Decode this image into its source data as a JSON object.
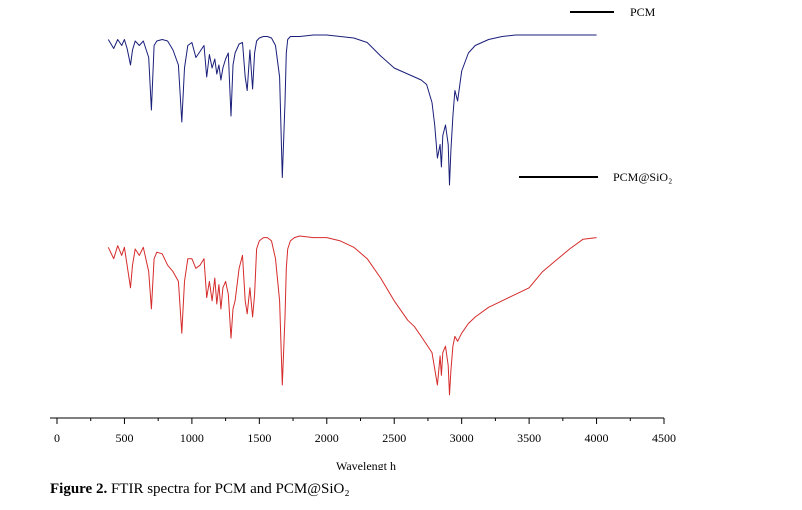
{
  "caption": {
    "label": "Figure 2.",
    "text": "FTIR spectra for PCM and PCM@SiO₂"
  },
  "chart_data": {
    "type": "line",
    "title": "",
    "xlabel": "Wavelengt h",
    "ylabel": "",
    "xlim": [
      0,
      4500
    ],
    "xticks": [
      0,
      500,
      1000,
      1500,
      2000,
      2500,
      3000,
      3500,
      4000,
      4500
    ],
    "grid": false,
    "legend": "inline-right",
    "series": [
      {
        "name": "PCM",
        "color": "#1a1f7a",
        "x": [
          380,
          420,
          450,
          480,
          500,
          520,
          545,
          560,
          580,
          610,
          640,
          680,
          700,
          720,
          740,
          780,
          820,
          860,
          900,
          925,
          945,
          970,
          1000,
          1030,
          1060,
          1090,
          1110,
          1130,
          1150,
          1170,
          1185,
          1200,
          1215,
          1230,
          1250,
          1270,
          1290,
          1305,
          1320,
          1350,
          1375,
          1395,
          1410,
          1430,
          1450,
          1465,
          1480,
          1500,
          1530,
          1560,
          1590,
          1620,
          1650,
          1670,
          1690,
          1700,
          1710,
          1730,
          1760,
          1800,
          1900,
          2000,
          2100,
          2200,
          2300,
          2400,
          2500,
          2600,
          2650,
          2700,
          2740,
          2780,
          2800,
          2820,
          2840,
          2850,
          2860,
          2880,
          2900,
          2910,
          2920,
          2935,
          2950,
          2970,
          3000,
          3050,
          3100,
          3200,
          3300,
          3400,
          3500,
          3600,
          3700,
          3800,
          3900,
          4000
        ],
        "values": [
          97,
          91,
          97,
          93,
          97,
          91,
          80,
          90,
          96,
          93,
          96,
          85,
          50,
          93,
          96,
          97,
          96,
          90,
          80,
          42,
          78,
          93,
          95,
          85,
          89,
          93,
          72,
          87,
          78,
          84,
          74,
          80,
          70,
          78,
          84,
          88,
          46,
          80,
          88,
          94,
          95,
          72,
          63,
          90,
          64,
          88,
          96,
          98,
          99,
          99,
          98,
          93,
          72,
          5,
          55,
          88,
          97,
          99,
          99,
          99,
          100,
          100,
          99,
          98,
          95,
          86,
          78,
          74,
          72,
          70,
          67,
          55,
          40,
          18,
          27,
          12,
          33,
          40,
          27,
          0,
          23,
          46,
          63,
          56,
          76,
          88,
          93,
          97,
          99,
          100,
          100,
          100,
          100,
          100,
          100,
          100
        ]
      },
      {
        "name": "PCM@SiO₂",
        "color": "#d62b2b",
        "x": [
          380,
          420,
          450,
          480,
          500,
          520,
          545,
          560,
          580,
          610,
          640,
          680,
          700,
          720,
          740,
          780,
          820,
          860,
          900,
          925,
          945,
          970,
          1000,
          1030,
          1060,
          1090,
          1110,
          1130,
          1150,
          1170,
          1185,
          1200,
          1215,
          1230,
          1250,
          1270,
          1290,
          1305,
          1320,
          1350,
          1375,
          1395,
          1410,
          1430,
          1450,
          1465,
          1480,
          1500,
          1530,
          1560,
          1590,
          1620,
          1650,
          1670,
          1690,
          1700,
          1710,
          1730,
          1760,
          1800,
          1900,
          2000,
          2100,
          2200,
          2300,
          2400,
          2500,
          2600,
          2650,
          2700,
          2740,
          2780,
          2800,
          2820,
          2840,
          2850,
          2860,
          2880,
          2900,
          2910,
          2920,
          2935,
          2950,
          2970,
          3000,
          3050,
          3100,
          3200,
          3300,
          3400,
          3500,
          3600,
          3700,
          3800,
          3900,
          4000
        ],
        "values": [
          93,
          86,
          94,
          88,
          93,
          82,
          68,
          82,
          92,
          88,
          93,
          78,
          55,
          86,
          90,
          89,
          82,
          78,
          72,
          40,
          72,
          86,
          86,
          80,
          82,
          86,
          62,
          72,
          60,
          74,
          58,
          70,
          55,
          68,
          72,
          64,
          37,
          55,
          60,
          80,
          88,
          60,
          52,
          68,
          50,
          64,
          92,
          97,
          99,
          99,
          97,
          86,
          60,
          8,
          50,
          80,
          92,
          97,
          99,
          100,
          99,
          99,
          97,
          93,
          86,
          74,
          60,
          48,
          44,
          38,
          33,
          28,
          18,
          8,
          26,
          14,
          28,
          32,
          20,
          2,
          17,
          32,
          38,
          35,
          40,
          46,
          50,
          56,
          60,
          64,
          68,
          78,
          85,
          92,
          98,
          99
        ]
      }
    ]
  }
}
